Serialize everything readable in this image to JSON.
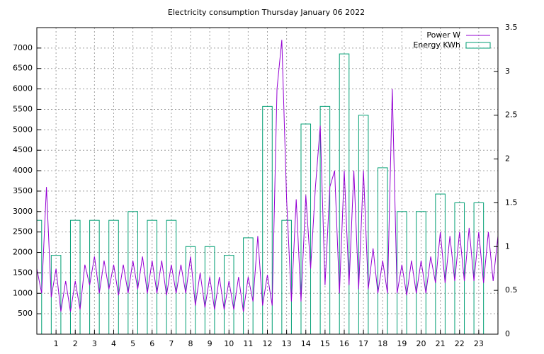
{
  "chart_data": {
    "type": "line-boxes",
    "title": "Electricity consumption Thursday January 06 2022",
    "xlim": [
      0,
      24
    ],
    "xticks": [
      1,
      2,
      3,
      4,
      5,
      6,
      7,
      8,
      9,
      10,
      11,
      12,
      13,
      14,
      15,
      16,
      17,
      18,
      19,
      20,
      21,
      22,
      23
    ],
    "ylim": [
      0,
      7500
    ],
    "yticks": [
      500,
      1000,
      1500,
      2000,
      2500,
      3000,
      3500,
      4000,
      4500,
      5000,
      5500,
      6000,
      6500,
      7000
    ],
    "y2lim": [
      0,
      3.5
    ],
    "y2ticks": [
      0,
      0.5,
      1,
      1.5,
      2,
      2.5,
      3,
      3.5
    ],
    "grid": true,
    "legend": "top-right",
    "series": [
      {
        "name": "Power W",
        "color": "#9400d3",
        "kind": "line",
        "x": [
          0,
          0.25,
          0.5,
          0.75,
          1,
          1.25,
          1.5,
          1.75,
          2,
          2.25,
          2.5,
          2.75,
          3,
          3.25,
          3.5,
          3.75,
          4,
          4.25,
          4.5,
          4.75,
          5,
          5.25,
          5.5,
          5.75,
          6,
          6.25,
          6.5,
          6.75,
          7,
          7.25,
          7.5,
          7.75,
          8,
          8.25,
          8.5,
          8.75,
          9,
          9.25,
          9.5,
          9.75,
          10,
          10.25,
          10.5,
          10.75,
          11,
          11.25,
          11.5,
          11.75,
          12,
          12.25,
          12.5,
          12.75,
          13,
          13.25,
          13.5,
          13.75,
          14,
          14.25,
          14.5,
          14.75,
          15,
          15.25,
          15.5,
          15.75,
          16,
          16.25,
          16.5,
          16.75,
          17,
          17.25,
          17.5,
          17.75,
          18,
          18.25,
          18.5,
          18.75,
          19,
          19.25,
          19.5,
          19.75,
          20,
          20.25,
          20.5,
          20.75,
          21,
          21.25,
          21.5,
          21.75,
          22,
          22.25,
          22.5,
          22.75,
          23,
          23.25,
          23.5,
          23.75,
          24
        ],
        "values": [
          1600,
          1000,
          3600,
          900,
          1600,
          550,
          1300,
          550,
          1300,
          600,
          1700,
          1200,
          1900,
          1000,
          1800,
          1100,
          1700,
          950,
          1700,
          1000,
          1800,
          1100,
          1900,
          1000,
          1800,
          1000,
          1800,
          950,
          1700,
          1000,
          1700,
          1000,
          1900,
          700,
          1500,
          650,
          1400,
          600,
          1400,
          600,
          1300,
          600,
          1400,
          550,
          1400,
          800,
          2400,
          700,
          1450,
          700,
          6000,
          7200,
          3300,
          800,
          3300,
          800,
          3400,
          1600,
          3600,
          5100,
          1200,
          3600,
          4000,
          1000,
          4000,
          1200,
          4000,
          1100,
          4000,
          1100,
          2100,
          1000,
          1800,
          1000,
          6000,
          1000,
          1700,
          950,
          1800,
          1000,
          1800,
          1000,
          1900,
          1250,
          2500,
          1250,
          2400,
          1300,
          2500,
          1300,
          2600,
          1300,
          2500,
          1250,
          2500,
          1300,
          2400
        ]
      },
      {
        "name": "Energy KWh",
        "color": "#009e73",
        "kind": "boxes",
        "axis": "y2",
        "x": [
          0,
          1,
          2,
          3,
          4,
          5,
          6,
          7,
          8,
          9,
          10,
          11,
          12,
          13,
          14,
          15,
          16,
          17,
          18,
          19,
          20,
          21,
          22,
          23
        ],
        "values": [
          1.3,
          0.9,
          1.3,
          1.3,
          1.3,
          1.4,
          1.3,
          1.3,
          1.0,
          1.0,
          0.9,
          1.1,
          2.6,
          1.3,
          2.4,
          2.6,
          3.2,
          2.5,
          1.9,
          1.4,
          1.4,
          1.6,
          1.5,
          1.5
        ]
      }
    ]
  }
}
